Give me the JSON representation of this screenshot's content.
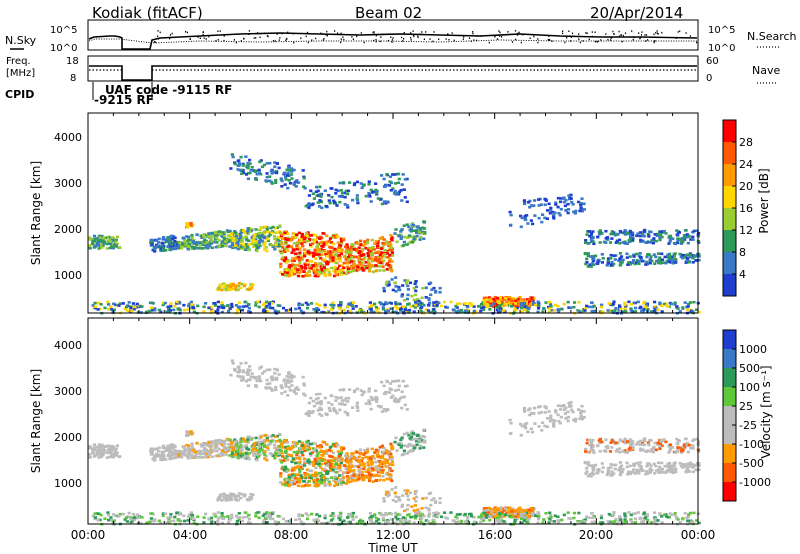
{
  "header": {
    "station": "Kodiak (fitACF)",
    "beam": "Beam 02",
    "date": "20/Apr/2014"
  },
  "top_panels": {
    "nsky_label": "N.Sky",
    "nsearch_label": "N.Search",
    "freq_label_1": "Freq.",
    "freq_label_2": "[MHz]",
    "nave_label": "Nave",
    "cpid_label": "CPID",
    "nsky_ticks": [
      "10^5",
      "10^0"
    ],
    "nsearch_ticks": [
      "10^5",
      "10^0"
    ],
    "freq_ticks": [
      "18",
      "8"
    ],
    "nave_ticks": [
      "60",
      "0"
    ],
    "cpid_text_1": "UAF code -9115 RF",
    "cpid_text_2": "-9215 RF"
  },
  "chart_data": [
    {
      "type": "heatmap",
      "panel": "power",
      "xlabel": "",
      "ylabel": "Slant Range [km]",
      "colorbar_label": "Power [dB]",
      "colorbar_ticks": [
        "28",
        "24",
        "20",
        "16",
        "12",
        "8",
        "4"
      ],
      "colorbar_colors": [
        "#ff0000",
        "#ff5a00",
        "#ff9a00",
        "#ffd700",
        "#9acd32",
        "#2e9a5a",
        "#3a78c8",
        "#1f3ecf",
        "#0a12ff"
      ],
      "y_ticks": [
        "4000",
        "3000",
        "2000",
        "1000"
      ],
      "ylim": [
        180,
        4500
      ],
      "xlim": [
        0,
        24
      ]
    },
    {
      "type": "heatmap",
      "panel": "velocity",
      "xlabel": "Time UT",
      "ylabel": "Slant Range [km]",
      "colorbar_label": "Velocity [m s⁻¹]",
      "colorbar_ticks": [
        "1000",
        "500",
        "100",
        "25",
        "-25",
        "-100",
        "-500",
        "-1000"
      ],
      "colorbar_colors": [
        "#1f3ecf",
        "#3a78c8",
        "#2e9a5a",
        "#5ec83a",
        "#bcbcbc",
        "#bcbcbc",
        "#ff9a00",
        "#ff5a00",
        "#ff0000"
      ],
      "y_ticks": [
        "4000",
        "3000",
        "2000",
        "1000"
      ],
      "x_ticks": [
        "00:00",
        "04:00",
        "08:00",
        "12:00",
        "16:00",
        "20:00",
        "00:00"
      ],
      "ylim": [
        180,
        4500
      ],
      "xlim": [
        0,
        24
      ]
    }
  ]
}
